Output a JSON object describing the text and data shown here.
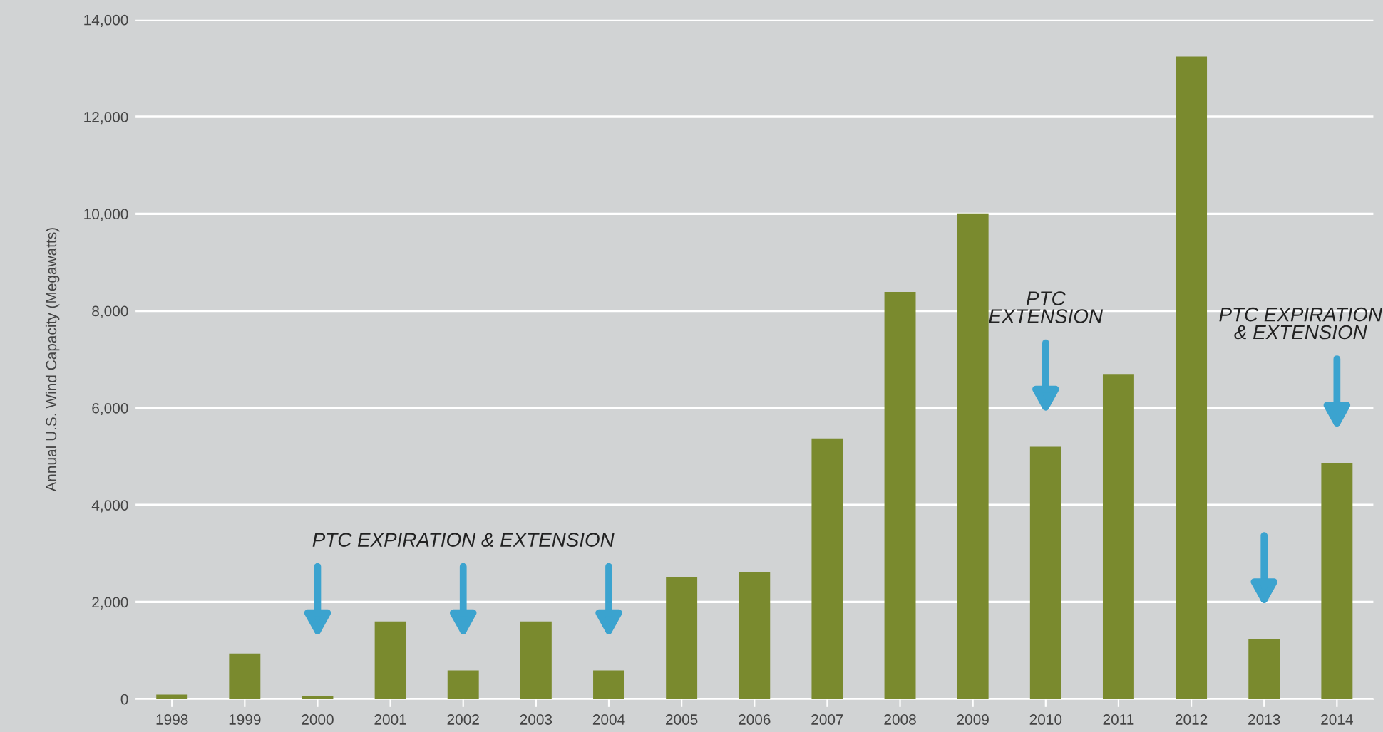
{
  "chart_data": {
    "type": "bar",
    "ylabel": "Annual U.S. Wind Capacity (Megawatts)",
    "categories": [
      "1998",
      "1999",
      "2000",
      "2001",
      "2002",
      "2003",
      "2004",
      "2005",
      "2006",
      "2007",
      "2008",
      "2009",
      "2010",
      "2011",
      "2012",
      "2013",
      "2014"
    ],
    "values": [
      90,
      940,
      70,
      1600,
      590,
      1600,
      590,
      2520,
      2610,
      5370,
      8390,
      10010,
      5200,
      6700,
      13240,
      1230,
      4870
    ],
    "color": "#7a8a2e",
    "ylim": [
      0,
      14000
    ],
    "yticks": [
      {
        "value": 0,
        "label": "0"
      },
      {
        "value": 2000,
        "label": "2,000"
      },
      {
        "value": 4000,
        "label": "4,000"
      },
      {
        "value": 6000,
        "label": "6,000"
      },
      {
        "value": 8000,
        "label": "8,000"
      },
      {
        "value": 10000,
        "label": "10,000"
      },
      {
        "value": 12000,
        "label": "12,000"
      },
      {
        "value": 14000,
        "label": "14,000"
      }
    ],
    "grid": "y",
    "annotations": [
      "PTC EXPIRATION & EXTENSION",
      "PTC\nEXTENSION",
      "PTC EXPIRATION\n& EXTENSION"
    ]
  }
}
